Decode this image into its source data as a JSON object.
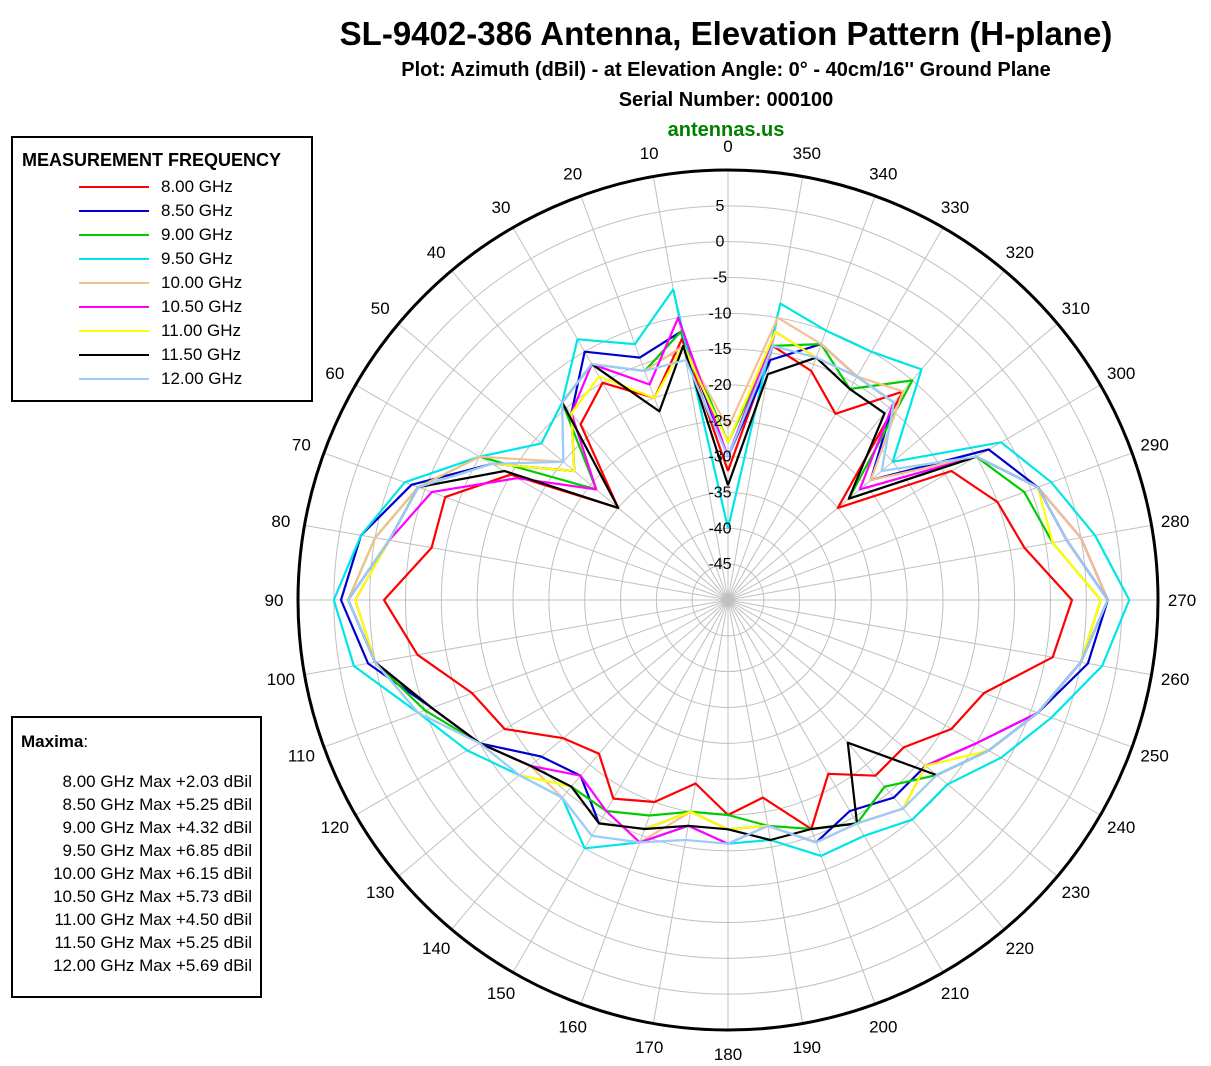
{
  "header": {
    "title": "SL-9402-386 Antenna, Elevation Pattern (H-plane)",
    "subtitle": "Plot:  Azimuth (dBil)  -  at Elevation Angle: 0°  -  40cm/16'' Ground Plane",
    "serial": "Serial Number:  000100",
    "brand": "antennas.us"
  },
  "legend": {
    "title": "MEASUREMENT FREQUENCY"
  },
  "maxima": {
    "title": "Maxima",
    "title_suffix": ":",
    "rows": [
      "8.00 GHz Max +2.03 dBil",
      "8.50 GHz Max +5.25 dBil",
      "9.00 GHz Max +4.32 dBil",
      "9.50 GHz Max +6.85 dBil",
      "10.00 GHz Max +6.15 dBil",
      "10.50 GHz Max +5.73 dBil",
      "11.00 GHz Max +4.50 dBil",
      "11.50 GHz Max +5.25 dBil",
      "12.00 GHz Max +5.69 dBil"
    ]
  },
  "chart_data": {
    "type": "polar-line",
    "title": "SL-9402-386 Antenna, Elevation Pattern (H-plane)",
    "radial_axis": {
      "range": [
        -50,
        10
      ],
      "ticks": [
        5,
        0,
        -5,
        -10,
        -15,
        -20,
        -25,
        -30,
        -35,
        -40,
        -45
      ],
      "tick_labels": [
        "5",
        "0",
        "-5",
        "-10",
        "-15",
        "-20",
        "-25",
        "-30",
        "-35",
        "-40",
        "-45"
      ]
    },
    "angular_axis": {
      "direction": "counterclockwise",
      "zero_at": "top",
      "step": 10,
      "labels": [
        "0",
        "10",
        "20",
        "30",
        "40",
        "50",
        "60",
        "70",
        "80",
        "90",
        "100",
        "110",
        "120",
        "130",
        "140",
        "150",
        "160",
        "170",
        "180",
        "190",
        "200",
        "210",
        "220",
        "230",
        "240",
        "250",
        "260",
        "270",
        "280",
        "290",
        "300",
        "310",
        "320",
        "330",
        "340",
        "350"
      ]
    },
    "grid": true,
    "legend_position": "top-left",
    "angles_deg": [
      0,
      10,
      20,
      30,
      40,
      50,
      60,
      70,
      80,
      90,
      100,
      110,
      120,
      130,
      140,
      150,
      160,
      170,
      180,
      190,
      200,
      210,
      220,
      230,
      240,
      250,
      260,
      270,
      280,
      290,
      300,
      310,
      320,
      330,
      340,
      350
    ],
    "series": [
      {
        "name": "8.00 GHz",
        "color": "#ff0000",
        "values": [
          -32,
          -13,
          -20,
          -15,
          -18,
          -30,
          -15,
          -8,
          -8,
          -2,
          -6,
          -12,
          -14,
          -20,
          -22,
          -18,
          -20,
          -24,
          -20,
          -22,
          -16,
          -22,
          -18,
          -18,
          -14,
          -12,
          -4,
          -2,
          -8,
          -10,
          -14,
          -30,
          -12,
          -20,
          -16,
          -14
        ]
      },
      {
        "name": "8.50 GHz",
        "color": "#0000cc",
        "values": [
          -30,
          -12,
          -14,
          -10,
          -16,
          -22,
          -12,
          -3,
          2,
          4,
          1,
          -6,
          -10,
          -16,
          -18,
          -14,
          -16,
          -20,
          -18,
          -18,
          -14,
          -16,
          -14,
          -14,
          -10,
          -4,
          1,
          3,
          0,
          -4,
          -8,
          -24,
          -14,
          -14,
          -12,
          -16
        ]
      },
      {
        "name": "9.00 GHz",
        "color": "#00cc00",
        "values": [
          -28,
          -12,
          -16,
          -12,
          -14,
          -26,
          -10,
          -4,
          0,
          3,
          0,
          -5,
          -10,
          -14,
          -16,
          -16,
          -18,
          -20,
          -20,
          -18,
          -16,
          -14,
          -16,
          -12,
          -8,
          -4,
          0,
          2,
          -4,
          -6,
          -10,
          -28,
          -10,
          -16,
          -12,
          -14
        ]
      },
      {
        "name": "9.50 GHz",
        "color": "#00e5e5",
        "values": [
          -40,
          -6,
          -12,
          -8,
          -14,
          -16,
          -10,
          -2,
          2,
          5,
          3,
          -4,
          -8,
          -12,
          -14,
          -10,
          -14,
          -18,
          -16,
          -16,
          -12,
          -12,
          -10,
          -10,
          -6,
          -2,
          3,
          6,
          2,
          -2,
          -6,
          -20,
          -8,
          -10,
          -10,
          -8
        ]
      },
      {
        "name": "10.00 GHz",
        "color": "#f5c090",
        "values": [
          -26,
          -14,
          -16,
          -12,
          -14,
          -20,
          -10,
          -4,
          0,
          3,
          0,
          -4,
          -10,
          -14,
          -14,
          -12,
          -14,
          -20,
          -18,
          -18,
          -14,
          -14,
          -12,
          -12,
          -8,
          -4,
          0,
          3,
          0,
          -4,
          -10,
          -24,
          -12,
          -14,
          -12,
          -10
        ]
      },
      {
        "name": "10.50 GHz",
        "color": "#ff00ff",
        "values": [
          -30,
          -10,
          -18,
          -12,
          -16,
          -26,
          -16,
          -6,
          -2,
          2,
          0,
          -6,
          -10,
          -14,
          -18,
          -16,
          -14,
          -18,
          -16,
          -18,
          -14,
          -14,
          -12,
          -14,
          -10,
          -4,
          0,
          3,
          -2,
          -4,
          -10,
          -26,
          -14,
          -14,
          -14,
          -12
        ]
      },
      {
        "name": "11.00 GHz",
        "color": "#ffff00",
        "values": [
          -28,
          -14,
          -20,
          -14,
          -16,
          -22,
          -12,
          -4,
          -2,
          2,
          0,
          -4,
          -10,
          -12,
          -16,
          -14,
          -16,
          -20,
          -18,
          -18,
          -14,
          -14,
          -12,
          -14,
          -8,
          -4,
          0,
          2,
          -4,
          -4,
          -10,
          -22,
          -14,
          -14,
          -14,
          -12
        ]
      },
      {
        "name": "11.50 GHz",
        "color": "#000000",
        "values": [
          -34,
          -14,
          -22,
          -12,
          -14,
          -30,
          -14,
          -4,
          -2,
          3,
          0,
          -6,
          -10,
          -14,
          -16,
          -14,
          -16,
          -18,
          -18,
          -16,
          -16,
          -14,
          -24,
          -12,
          -8,
          -4,
          0,
          3,
          -2,
          -4,
          -10,
          -28,
          -16,
          -16,
          -14,
          -18
        ]
      },
      {
        "name": "12.00 GHz",
        "color": "#99ccff",
        "values": [
          -30,
          -16,
          -16,
          -12,
          -14,
          -20,
          -12,
          -4,
          -2,
          3,
          0,
          -4,
          -10,
          -12,
          -14,
          -12,
          -14,
          -16,
          -16,
          -18,
          -14,
          -14,
          -12,
          -12,
          -8,
          -4,
          0,
          3,
          -2,
          -4,
          -10,
          -22,
          -14,
          -14,
          -14,
          -14
        ]
      }
    ]
  }
}
